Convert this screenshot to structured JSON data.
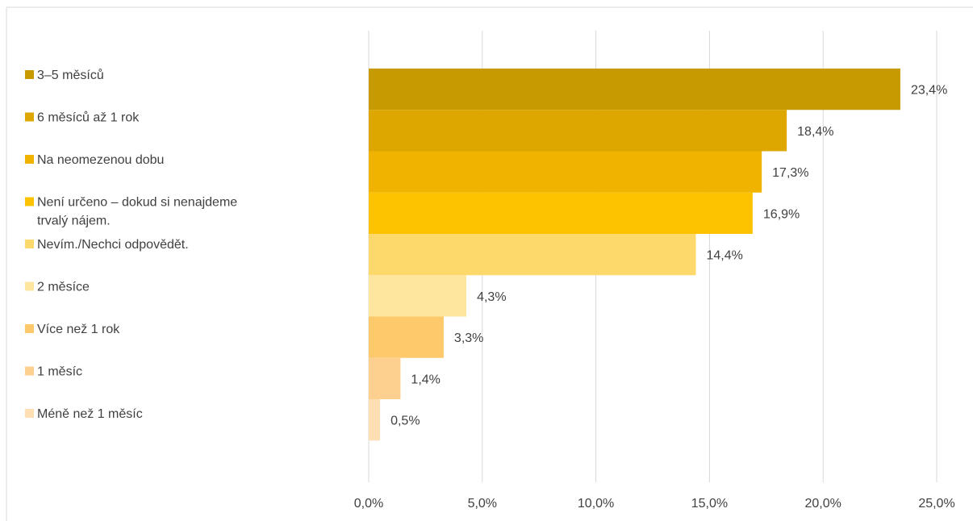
{
  "chart_data": {
    "type": "bar",
    "orientation": "horizontal",
    "title": "",
    "xlabel": "",
    "ylabel": "",
    "xlim": [
      0,
      25
    ],
    "x_ticks": [
      0,
      5,
      10,
      15,
      20,
      25
    ],
    "x_tick_labels": [
      "0,0%",
      "5,0%",
      "10,0%",
      "15,0%",
      "20,0%",
      "25,0%"
    ],
    "grid": "vertical",
    "legend_position": "left",
    "categories": [
      "3–5 měsíců",
      "6 měsíců až 1 rok",
      "Na neomezenou dobu",
      "Není určeno – dokud si nenajdeme trvalý nájem.",
      "Nevím./Nechci odpovědět.",
      "2 měsíce",
      "Více než 1 rok",
      "1 měsíc",
      "Méně než 1 měsíc"
    ],
    "legend_lines": [
      [
        "3–5 měsíců"
      ],
      [
        "6 měsíců až 1 rok"
      ],
      [
        "Na neomezenou dobu"
      ],
      [
        "Není určeno – dokud si nenajdeme",
        "trvalý nájem."
      ],
      [
        "Nevím./Nechci odpovědět."
      ],
      [
        "2 měsíce"
      ],
      [
        "Více než 1 rok"
      ],
      [
        "1 měsíc"
      ],
      [
        "Méně než 1 měsíc"
      ]
    ],
    "values": [
      23.4,
      18.4,
      17.3,
      16.9,
      14.4,
      4.3,
      3.3,
      1.4,
      0.5
    ],
    "value_labels": [
      "23,4%",
      "18,4%",
      "17,3%",
      "16,9%",
      "14,4%",
      "4,3%",
      "3,3%",
      "1,4%",
      "0,5%"
    ],
    "colors": [
      "#C69A00",
      "#DDA700",
      "#F0B300",
      "#FDC300",
      "#FDD86A",
      "#FEE69E",
      "#FEC96A",
      "#FED090",
      "#FEDFB4"
    ],
    "axis_color": "#D9D9D9",
    "text_color": "#404040"
  }
}
